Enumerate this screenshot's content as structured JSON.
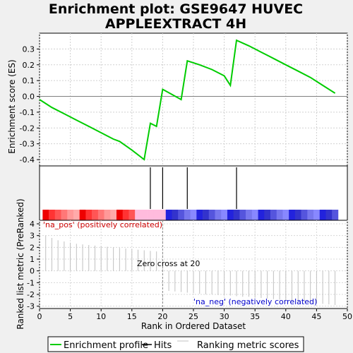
{
  "chart_data": {
    "type": "line",
    "title": [
      "Enrichment plot: GSE9647 HUVEC",
      "APPLEEXTRACT 4H"
    ],
    "xlabel": "Rank in Ordered Dataset",
    "top_ylabel": "Enrichment score (ES)",
    "bottom_ylabel": "Ranked list metric (PreRanked)",
    "xlim": [
      0,
      50
    ],
    "x_ticks": [
      0,
      5,
      10,
      15,
      20,
      25,
      30,
      35,
      40,
      45,
      50
    ],
    "top_ylim": [
      -0.44,
      0.4
    ],
    "top_y_ticks": [
      -0.4,
      -0.3,
      -0.2,
      -0.1,
      0.0,
      0.1,
      0.2,
      0.3
    ],
    "top_y_tick_labels": [
      "-0.4",
      "-0.3",
      "-0.2",
      "-0.1",
      "0.0",
      "0.1",
      "0.2",
      "0.3"
    ],
    "bottom_ylim": [
      -3.2,
      4.3
    ],
    "bottom_y_ticks": [
      -3,
      -2,
      -1,
      0,
      1,
      2,
      3,
      4
    ],
    "enrichment_profile": {
      "x": [
        0,
        2,
        4,
        6,
        8,
        10,
        11,
        12,
        13,
        15,
        17,
        18,
        19,
        20,
        23,
        24,
        26,
        28,
        30,
        31,
        32,
        34,
        36,
        38,
        40,
        42,
        44,
        46,
        48
      ],
      "y": [
        -0.02,
        -0.07,
        -0.11,
        -0.15,
        -0.19,
        -0.23,
        -0.25,
        -0.27,
        -0.285,
        -0.34,
        -0.4,
        -0.17,
        -0.19,
        0.045,
        -0.02,
        0.225,
        0.2,
        0.17,
        0.13,
        0.07,
        0.355,
        0.32,
        0.28,
        0.24,
        0.2,
        0.16,
        0.12,
        0.07,
        0.02
      ]
    },
    "hits": [
      18,
      20,
      24,
      32
    ],
    "ranking_metric": {
      "x": [
        1,
        2,
        3,
        4,
        5,
        6,
        7,
        8,
        9,
        10,
        11,
        12,
        13,
        14,
        15,
        16,
        17,
        18,
        19,
        20,
        21,
        22,
        23,
        24,
        25,
        26,
        27,
        28,
        29,
        30,
        31,
        32,
        33,
        34,
        35,
        36,
        37,
        38,
        39,
        40,
        41,
        42,
        43,
        44,
        45,
        46,
        47,
        48
      ],
      "values": [
        3.0,
        2.8,
        2.6,
        2.5,
        2.4,
        2.3,
        2.25,
        2.2,
        2.15,
        2.1,
        2.05,
        2.0,
        1.95,
        1.9,
        1.85,
        1.8,
        1.75,
        1.7,
        1.65,
        -0.05,
        -1.7,
        -1.75,
        -1.8,
        -1.85,
        -1.9,
        -1.95,
        -2.0,
        -2.0,
        -2.05,
        -2.1,
        -2.1,
        -2.15,
        -2.2,
        -2.2,
        -2.25,
        -2.3,
        -2.35,
        -2.4,
        -2.45,
        -2.5,
        -2.55,
        -2.6,
        -2.65,
        -2.7,
        -2.75,
        -2.8,
        -2.85,
        -2.9
      ]
    },
    "zero_cross": 20,
    "colors": {
      "profile": "#00cc00",
      "hits": "#000000",
      "metric": "#c0c0c0",
      "pos_label": "#cc0000",
      "neg_label": "#0000cc",
      "zero_line": "#888888"
    },
    "annotations": {
      "pos_label": "'na_pos' (positively correlated)",
      "neg_label": "'na_neg' (negatively correlated)",
      "zero_cross_label": "Zero cross at 20"
    },
    "legend": {
      "entries": [
        "Enrichment profile",
        "Hits",
        "Ranking metric scores"
      ],
      "placement": "bottom"
    }
  }
}
